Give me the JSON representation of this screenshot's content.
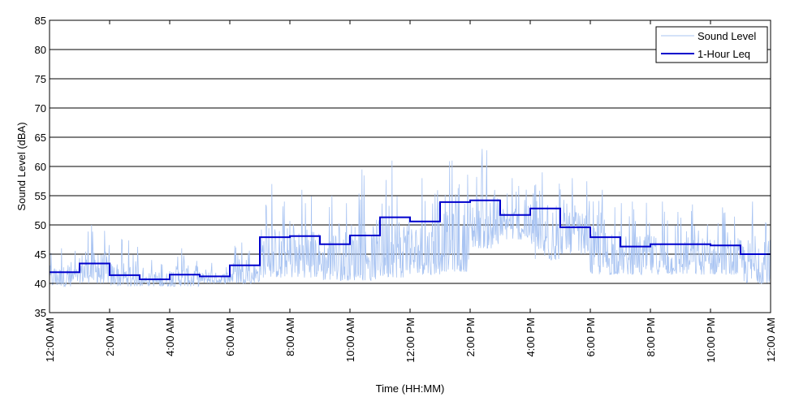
{
  "chart_data": {
    "type": "line",
    "title": "",
    "xlabel": "Time (HH:MM)",
    "ylabel": "Sound Level (dBA)",
    "ylim": [
      35,
      85
    ],
    "yticks": [
      35,
      40,
      45,
      50,
      55,
      60,
      65,
      70,
      75,
      80,
      85
    ],
    "xlim_hours": [
      0,
      24
    ],
    "xtick_labels": [
      "12:00 AM",
      "2:00 AM",
      "4:00 AM",
      "6:00 AM",
      "8:00 AM",
      "10:00 AM",
      "12:00 PM",
      "2:00 PM",
      "4:00 PM",
      "6:00 PM",
      "8:00 PM",
      "10:00 PM",
      "12:00 AM"
    ],
    "grid": "horizontal",
    "legend_position": "top-right",
    "series": [
      {
        "name": "Sound Level",
        "color": "#a9c4f2",
        "style": "thin-noisy",
        "approx_hourly_range": [
          [
            39.5,
            46
          ],
          [
            40,
            50
          ],
          [
            39.5,
            47.5
          ],
          [
            39.5,
            44
          ],
          [
            39.5,
            46
          ],
          [
            40,
            43.5
          ],
          [
            40,
            47
          ],
          [
            41,
            57
          ],
          [
            41,
            56
          ],
          [
            40.5,
            55
          ],
          [
            40.5,
            59.5
          ],
          [
            41,
            61
          ],
          [
            41.5,
            58
          ],
          [
            42,
            61
          ],
          [
            46,
            63
          ],
          [
            47.5,
            58
          ],
          [
            44,
            59
          ],
          [
            45,
            58
          ],
          [
            41.5,
            56
          ],
          [
            41.5,
            54
          ],
          [
            41.5,
            54
          ],
          [
            41.5,
            53.5
          ],
          [
            41.5,
            53
          ],
          [
            40,
            54
          ]
        ]
      },
      {
        "name": "1-Hour Leq",
        "color": "#0000cc",
        "style": "step",
        "hours": [
          0,
          1,
          2,
          3,
          4,
          5,
          6,
          7,
          8,
          9,
          10,
          11,
          12,
          13,
          14,
          15,
          16,
          17,
          18,
          19,
          20,
          21,
          22,
          23
        ],
        "values": [
          41.9,
          43.4,
          41.4,
          40.7,
          41.5,
          41.2,
          43.1,
          47.9,
          48.1,
          46.7,
          48.2,
          51.3,
          50.6,
          53.9,
          54.2,
          51.7,
          52.8,
          49.6,
          47.9,
          46.3,
          46.7,
          46.7,
          46.5,
          45.0
        ]
      }
    ]
  }
}
